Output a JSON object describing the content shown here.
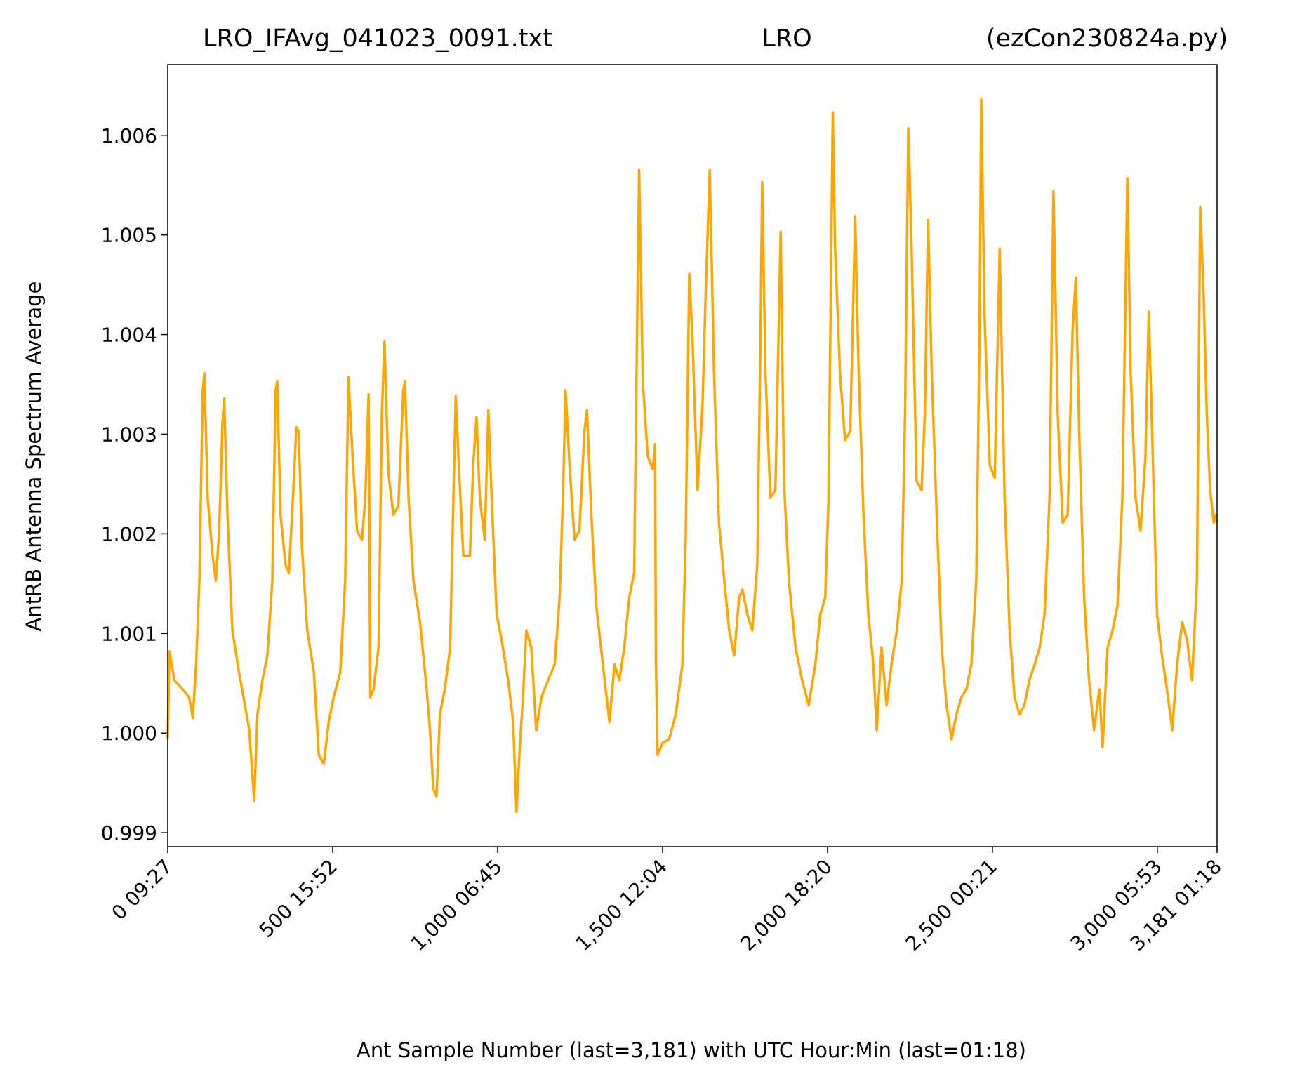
{
  "chart_data": {
    "type": "line",
    "title": [
      "LRO_IFAvg_041023_0091.txt",
      "LRO",
      "(ezCon230824a.py)"
    ],
    "x_label": "Ant Sample Number (last=3,181) with UTC Hour:Min (last=01:18)",
    "y_label": "AntRB Antenna Spectrum Average",
    "color": "#ffa500",
    "xlim": [
      0,
      3181
    ],
    "ylim": [
      0.99886,
      1.00671
    ],
    "xticks": [
      {
        "value": 0,
        "label": "0  09:27"
      },
      {
        "value": 500,
        "label": "500  15:52"
      },
      {
        "value": 1000,
        "label": "1,000  06:45"
      },
      {
        "value": 1500,
        "label": "1,500  12:04"
      },
      {
        "value": 2000,
        "label": "2,000  18:20"
      },
      {
        "value": 2500,
        "label": "2,500  00:21"
      },
      {
        "value": 3000,
        "label": "3,000  05:53"
      },
      {
        "value": 3181,
        "label": "3,181  01:18"
      }
    ],
    "yticks": [
      0.999,
      {
        "value": 1,
        "label": "1.000"
      },
      1.001,
      1.002,
      1.003,
      1.004,
      1.005,
      1.006
    ],
    "x": [
      0,
      5,
      20,
      45,
      65,
      76,
      86,
      96,
      106,
      111,
      121,
      136,
      146,
      156,
      166,
      171,
      181,
      196,
      216,
      234,
      247,
      262,
      272,
      287,
      302,
      317,
      327,
      332,
      342,
      357,
      367,
      377,
      390,
      397,
      407,
      423,
      443,
      458,
      473,
      488,
      503,
      523,
      538,
      548,
      559,
      574,
      589,
      599,
      609,
      614,
      624,
      639,
      649,
      657,
      669,
      684,
      699,
      714,
      719,
      730,
      745,
      765,
      785,
      795,
      805,
      815,
      825,
      840,
      856,
      866,
      873,
      881,
      896,
      916,
      926,
      936,
      946,
      961,
      972,
      982,
      997,
      1012,
      1032,
      1047,
      1057,
      1067,
      1077,
      1087,
      1102,
      1117,
      1133,
      1153,
      1173,
      1188,
      1198,
      1206,
      1218,
      1233,
      1248,
      1263,
      1271,
      1284,
      1299,
      1319,
      1339,
      1354,
      1369,
      1384,
      1399,
      1414,
      1424,
      1429,
      1440,
      1455,
      1470,
      1477,
      1480,
      1485,
      1500,
      1520,
      1540,
      1560,
      1570,
      1581,
      1591,
      1606,
      1621,
      1631,
      1643,
      1656,
      1671,
      1687,
      1702,
      1717,
      1732,
      1742,
      1757,
      1772,
      1787,
      1797,
      1802,
      1812,
      1827,
      1842,
      1858,
      1868,
      1883,
      1903,
      1923,
      1943,
      1963,
      1978,
      1993,
      2003,
      2016,
      2023,
      2038,
      2053,
      2069,
      2084,
      2094,
      2109,
      2124,
      2139,
      2149,
      2164,
      2179,
      2194,
      2210,
      2225,
      2235,
      2245,
      2255,
      2270,
      2285,
      2295,
      2305,
      2316,
      2331,
      2346,
      2361,
      2376,
      2391,
      2406,
      2421,
      2436,
      2451,
      2461,
      2466,
      2476,
      2492,
      2507,
      2522,
      2537,
      2552,
      2567,
      2582,
      2597,
      2612,
      2628,
      2643,
      2658,
      2673,
      2685,
      2698,
      2713,
      2728,
      2743,
      2753,
      2763,
      2778,
      2793,
      2808,
      2824,
      2834,
      2849,
      2864,
      2879,
      2894,
      2909,
      2919,
      2934,
      2949,
      2964,
      2974,
      2984,
      2999,
      3014,
      3029,
      3045,
      3060,
      3075,
      3090,
      3105,
      3120,
      3130,
      3140,
      3150,
      3160,
      3171,
      3176,
      3181
    ],
    "values": [
      0.99994,
      1.00082,
      1.00053,
      1.00044,
      1.00036,
      1.00015,
      1.00069,
      1.00153,
      1.00344,
      1.00361,
      1.00236,
      1.00178,
      1.00153,
      1.00203,
      1.00311,
      1.00336,
      1.00219,
      1.00103,
      1.00061,
      1.00028,
      1.00003,
      0.99932,
      1.00019,
      1.00053,
      1.00078,
      1.00153,
      1.00344,
      1.00353,
      1.00219,
      1.00169,
      1.00161,
      1.00219,
      1.00307,
      1.00303,
      1.00186,
      1.00103,
      1.00061,
      0.99978,
      0.99969,
      1.00011,
      1.00036,
      1.00061,
      1.00153,
      1.00357,
      1.00286,
      1.00203,
      1.00194,
      1.00236,
      1.0034,
      1.00036,
      1.00044,
      1.00086,
      1.00319,
      1.00393,
      1.00261,
      1.00219,
      1.00228,
      1.00344,
      1.00353,
      1.00236,
      1.00153,
      1.00111,
      1.00044,
      1.00003,
      0.99944,
      0.99936,
      1.00019,
      1.00044,
      1.00086,
      1.00236,
      1.00338,
      1.00278,
      1.00178,
      1.00178,
      1.00269,
      1.00317,
      1.00236,
      1.00194,
      1.00324,
      1.00236,
      1.00119,
      1.00094,
      1.00053,
      1.00011,
      0.99921,
      0.99986,
      1.00036,
      1.00103,
      1.00086,
      1.00003,
      1.00036,
      1.00053,
      1.00069,
      1.00136,
      1.00236,
      1.00344,
      1.00269,
      1.00194,
      1.00203,
      1.00303,
      1.00324,
      1.00219,
      1.00128,
      1.00069,
      1.00011,
      1.00069,
      1.00053,
      1.00086,
      1.00136,
      1.00161,
      1.00436,
      1.00565,
      1.00353,
      1.00278,
      1.00265,
      1.0029,
      1.00069,
      0.99978,
      0.9999,
      0.99994,
      1.00019,
      1.00069,
      1.00194,
      1.00461,
      1.00394,
      1.00244,
      1.00328,
      1.00444,
      1.00565,
      1.00361,
      1.00211,
      1.00153,
      1.00103,
      1.00078,
      1.00136,
      1.00144,
      1.00119,
      1.00103,
      1.00169,
      1.00403,
      1.00553,
      1.00361,
      1.00236,
      1.00244,
      1.00503,
      1.00253,
      1.00153,
      1.00086,
      1.00053,
      1.00028,
      1.00069,
      1.00119,
      1.00136,
      1.00236,
      1.00623,
      1.00486,
      1.00361,
      1.00294,
      1.00303,
      1.00519,
      1.00369,
      1.00219,
      1.00119,
      1.00069,
      1.00003,
      1.00086,
      1.00028,
      1.00069,
      1.00103,
      1.00153,
      1.00319,
      1.00607,
      1.00486,
      1.00253,
      1.00244,
      1.00319,
      1.00515,
      1.00361,
      1.00219,
      1.00086,
      1.00028,
      0.99994,
      1.00019,
      1.00036,
      1.00044,
      1.00069,
      1.00153,
      1.00403,
      1.00636,
      1.00419,
      1.00269,
      1.00256,
      1.00486,
      1.00236,
      1.00103,
      1.00036,
      1.00019,
      1.00028,
      1.00053,
      1.00069,
      1.00086,
      1.00119,
      1.00236,
      1.00544,
      1.00319,
      1.00211,
      1.00219,
      1.00403,
      1.00457,
      1.00303,
      1.00136,
      1.00053,
      1.00003,
      1.00044,
      0.99986,
      1.00086,
      1.00103,
      1.00128,
      1.00236,
      1.00557,
      1.00361,
      1.00236,
      1.00203,
      1.00278,
      1.00423,
      1.00303,
      1.00119,
      1.00078,
      1.00044,
      1.00003,
      1.00069,
      1.00111,
      1.00094,
      1.00053,
      1.00153,
      1.00528,
      1.00444,
      1.00319,
      1.00244,
      1.00211,
      1.00219,
      1.00211
    ]
  }
}
